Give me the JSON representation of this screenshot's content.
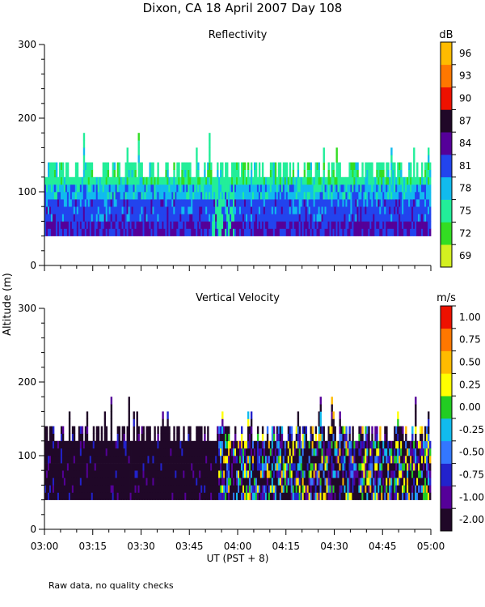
{
  "title": "Dixon, CA 18 April 2007  Day 108",
  "y_axis_label": "Altitude (m)",
  "x_axis_label": "UT  (PST + 8)",
  "footnote": "Raw data, no quality checks",
  "x_ticks": [
    "03:00",
    "03:15",
    "03:30",
    "03:45",
    "04:00",
    "04:15",
    "04:30",
    "04:45",
    "05:00"
  ],
  "chart_data": [
    {
      "type": "heatmap",
      "title": "Reflectivity",
      "xlabel": "UT  (PST + 8)",
      "ylabel": "Altitude (m)",
      "xlim": [
        "03:00",
        "05:00"
      ],
      "ylim": [
        0,
        300
      ],
      "y_ticks": [
        0,
        100,
        200,
        300
      ],
      "colorbar_unit": "dB",
      "colorbar_labels": [
        "69",
        "72",
        "75",
        "78",
        "81",
        "84",
        "87",
        "90",
        "93",
        "96"
      ],
      "colorbar_colors": [
        "#d4f020",
        "#33dd22",
        "#22ee99",
        "#11bbee",
        "#2244ee",
        "#550099",
        "#200828",
        "#ee1100",
        "#ff7700",
        "#ffbb00"
      ],
      "data_altitude_range_m": [
        40,
        140
      ],
      "occasional_peaks_m": 180,
      "dominant_classes_by_altitude": [
        {
          "altitude_m": [
            40,
            55
          ],
          "value_db": 84
        },
        {
          "altitude_m": [
            55,
            85
          ],
          "value_db": 81
        },
        {
          "altitude_m": [
            85,
            110
          ],
          "value_db": 78
        },
        {
          "altitude_m": [
            110,
            140
          ],
          "value_db": 75
        }
      ]
    },
    {
      "type": "heatmap",
      "title": "Vertical Velocity",
      "xlabel": "UT  (PST + 8)",
      "ylabel": "Altitude (m)",
      "xlim": [
        "03:00",
        "05:00"
      ],
      "ylim": [
        0,
        300
      ],
      "y_ticks": [
        0,
        100,
        200,
        300
      ],
      "colorbar_unit": "m/s",
      "colorbar_labels": [
        "-2.00",
        "-1.00",
        "-0.75",
        "-0.50",
        "-0.25",
        "0.00",
        "0.25",
        "0.50",
        "0.75",
        "1.00"
      ],
      "colorbar_colors": [
        "#200828",
        "#550099",
        "#2222cc",
        "#3377ff",
        "#11bbee",
        "#22cc22",
        "#ffff00",
        "#ffbb00",
        "#ff7700",
        "#ee1100"
      ],
      "data_altitude_range_m": [
        40,
        140
      ],
      "occasional_peaks_m": 180,
      "dominant_value_before_0400_ms": -2.0,
      "mixed_values_after_0400_ms": [
        -1.0,
        0.5
      ]
    }
  ]
}
